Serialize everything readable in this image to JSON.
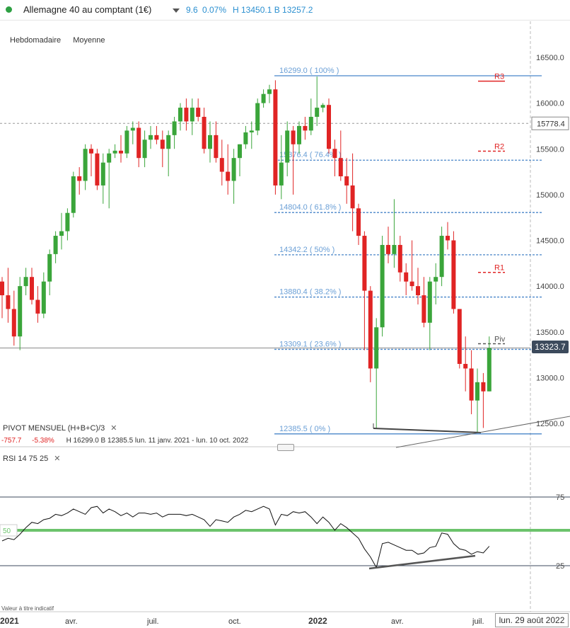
{
  "header": {
    "instrument_name": "Allemagne 40 au comptant (1€)",
    "change_abs": "9.6",
    "change_pct": "0.07%",
    "high_low": "H 13450.1  B 13257.2"
  },
  "toolbar": {
    "period": "Hebdomadaire",
    "average": "Moyenne"
  },
  "price_axis": {
    "ticks": [
      "16500.0",
      "16000.0",
      "15500.0",
      "15000.0",
      "14500.0",
      "14000.0",
      "13500.0",
      "13000.0",
      "12500.0"
    ],
    "highlight_level": "15778.4",
    "current_price": "13323.7"
  },
  "fibonacci": [
    {
      "label": "16299.0 ( 100% )"
    },
    {
      "label": "15376.4 ( 76.4% )"
    },
    {
      "label": "14804.0 ( 61.8% )"
    },
    {
      "label": "14342.2 ( 50% )"
    },
    {
      "label": "13880.4 ( 38.2% )"
    },
    {
      "label": "13309.1 ( 23.6% )"
    },
    {
      "label": "12385.5 ( 0% )"
    }
  ],
  "pivots": {
    "r3": "R3",
    "r2": "R2",
    "r1": "R1",
    "piv": "Piv"
  },
  "pivot_indicator": {
    "title": "PIVOT  MENSUEL  (H+B+C)/3",
    "change": "-757.7",
    "change_pct": "-5.38%",
    "range": "H 16299.0  B 12385.5  lun. 11 janv. 2021 - lun. 10 oct. 2022"
  },
  "rsi_indicator": {
    "title": "RSI  14  75  25",
    "level_75": "75",
    "level_50": "50",
    "level_25": "25"
  },
  "time_axis": {
    "labels": [
      "2021",
      "avr.",
      "juil.",
      "oct.",
      "2022",
      "avr.",
      "juil."
    ],
    "current_date": "lun. 29 août 2022"
  },
  "disclaimer": "Valeur à titre indicatif",
  "colors": {
    "up": "#3aa53a",
    "down": "#e02424",
    "fib": "#2a72c0",
    "rsi_mid": "#6cc36c",
    "pivot": "#e02424"
  },
  "chart_data": {
    "type": "candlestick",
    "title": "Allemagne 40 au comptant (1€)",
    "timeframe": "Hebdomadaire",
    "ylim": [
      12200,
      16800
    ],
    "candles": [
      {
        "o": 14050,
        "h": 14100,
        "l": 13650,
        "c": 13900
      },
      {
        "o": 13900,
        "h": 14200,
        "l": 13600,
        "c": 13750
      },
      {
        "o": 13750,
        "h": 13950,
        "l": 13350,
        "c": 13450
      },
      {
        "o": 13450,
        "h": 14100,
        "l": 13300,
        "c": 14000
      },
      {
        "o": 14000,
        "h": 14200,
        "l": 13900,
        "c": 14100
      },
      {
        "o": 14100,
        "h": 14200,
        "l": 13800,
        "c": 13850
      },
      {
        "o": 13850,
        "h": 14000,
        "l": 13600,
        "c": 13700
      },
      {
        "o": 13700,
        "h": 14150,
        "l": 13650,
        "c": 14050
      },
      {
        "o": 14050,
        "h": 14400,
        "l": 13900,
        "c": 14350
      },
      {
        "o": 14350,
        "h": 14600,
        "l": 14250,
        "c": 14550
      },
      {
        "o": 14550,
        "h": 14800,
        "l": 14400,
        "c": 14600
      },
      {
        "o": 14600,
        "h": 14850,
        "l": 14500,
        "c": 14800
      },
      {
        "o": 14800,
        "h": 15250,
        "l": 14750,
        "c": 15200
      },
      {
        "o": 15200,
        "h": 15300,
        "l": 15000,
        "c": 15150
      },
      {
        "o": 15150,
        "h": 15550,
        "l": 15050,
        "c": 15500
      },
      {
        "o": 15500,
        "h": 15550,
        "l": 15200,
        "c": 15450
      },
      {
        "o": 15450,
        "h": 15500,
        "l": 15050,
        "c": 15100
      },
      {
        "o": 15100,
        "h": 15450,
        "l": 14900,
        "c": 15350
      },
      {
        "o": 15350,
        "h": 15500,
        "l": 14850,
        "c": 15450
      },
      {
        "o": 15450,
        "h": 15550,
        "l": 15400,
        "c": 15480
      },
      {
        "o": 15480,
        "h": 15650,
        "l": 15350,
        "c": 15450
      },
      {
        "o": 15450,
        "h": 15750,
        "l": 15400,
        "c": 15700
      },
      {
        "o": 15700,
        "h": 15800,
        "l": 15550,
        "c": 15730
      },
      {
        "o": 15730,
        "h": 15800,
        "l": 15300,
        "c": 15400
      },
      {
        "o": 15400,
        "h": 15700,
        "l": 15300,
        "c": 15600
      },
      {
        "o": 15600,
        "h": 15750,
        "l": 15500,
        "c": 15650
      },
      {
        "o": 15650,
        "h": 15750,
        "l": 15550,
        "c": 15600
      },
      {
        "o": 15600,
        "h": 15700,
        "l": 15300,
        "c": 15500
      },
      {
        "o": 15500,
        "h": 15700,
        "l": 15200,
        "c": 15650
      },
      {
        "o": 15650,
        "h": 15850,
        "l": 15500,
        "c": 15800
      },
      {
        "o": 15800,
        "h": 16000,
        "l": 15700,
        "c": 15950
      },
      {
        "o": 15950,
        "h": 16050,
        "l": 15700,
        "c": 15800
      },
      {
        "o": 15800,
        "h": 16050,
        "l": 15650,
        "c": 15950
      },
      {
        "o": 15950,
        "h": 16050,
        "l": 15800,
        "c": 15850
      },
      {
        "o": 15850,
        "h": 15950,
        "l": 15450,
        "c": 15500
      },
      {
        "o": 15500,
        "h": 15800,
        "l": 15350,
        "c": 15650
      },
      {
        "o": 15650,
        "h": 15800,
        "l": 15350,
        "c": 15400
      },
      {
        "o": 15400,
        "h": 15600,
        "l": 15100,
        "c": 15250
      },
      {
        "o": 15250,
        "h": 15550,
        "l": 15000,
        "c": 15150
      },
      {
        "o": 15150,
        "h": 15500,
        "l": 14900,
        "c": 15400
      },
      {
        "o": 15400,
        "h": 15550,
        "l": 15200,
        "c": 15550
      },
      {
        "o": 15550,
        "h": 15750,
        "l": 15500,
        "c": 15680
      },
      {
        "o": 15680,
        "h": 15800,
        "l": 15500,
        "c": 15700
      },
      {
        "o": 15700,
        "h": 16050,
        "l": 15650,
        "c": 16000
      },
      {
        "o": 16000,
        "h": 16150,
        "l": 15950,
        "c": 16100
      },
      {
        "o": 16100,
        "h": 16200,
        "l": 16000,
        "c": 16150
      },
      {
        "o": 16150,
        "h": 16250,
        "l": 15000,
        "c": 15100
      },
      {
        "o": 15100,
        "h": 15650,
        "l": 14950,
        "c": 15350
      },
      {
        "o": 15350,
        "h": 15800,
        "l": 15200,
        "c": 15700
      },
      {
        "o": 15700,
        "h": 15750,
        "l": 15000,
        "c": 15550
      },
      {
        "o": 15550,
        "h": 15800,
        "l": 15450,
        "c": 15750
      },
      {
        "o": 15750,
        "h": 15850,
        "l": 15600,
        "c": 15700
      },
      {
        "o": 15700,
        "h": 16050,
        "l": 15650,
        "c": 15850
      },
      {
        "o": 15850,
        "h": 16290,
        "l": 15750,
        "c": 15950
      },
      {
        "o": 15950,
        "h": 16000,
        "l": 15900,
        "c": 15980
      },
      {
        "o": 15980,
        "h": 16050,
        "l": 15450,
        "c": 15500
      },
      {
        "o": 15500,
        "h": 15600,
        "l": 15200,
        "c": 15400
      },
      {
        "o": 15400,
        "h": 15700,
        "l": 15150,
        "c": 15200
      },
      {
        "o": 15200,
        "h": 15400,
        "l": 14900,
        "c": 15100
      },
      {
        "o": 15100,
        "h": 15450,
        "l": 14600,
        "c": 14850
      },
      {
        "o": 14850,
        "h": 14900,
        "l": 14450,
        "c": 14550
      },
      {
        "o": 14550,
        "h": 14600,
        "l": 13300,
        "c": 13950
      },
      {
        "o": 13950,
        "h": 14000,
        "l": 12950,
        "c": 13100
      },
      {
        "o": 13100,
        "h": 13650,
        "l": 12450,
        "c": 13550
      },
      {
        "o": 13550,
        "h": 14550,
        "l": 13450,
        "c": 14450
      },
      {
        "o": 14450,
        "h": 14650,
        "l": 14250,
        "c": 14350
      },
      {
        "o": 14350,
        "h": 14950,
        "l": 14200,
        "c": 14450
      },
      {
        "o": 14450,
        "h": 14550,
        "l": 14050,
        "c": 14150
      },
      {
        "o": 14150,
        "h": 14250,
        "l": 13900,
        "c": 14050
      },
      {
        "o": 14050,
        "h": 14500,
        "l": 13950,
        "c": 14000
      },
      {
        "o": 14000,
        "h": 14200,
        "l": 13800,
        "c": 13900
      },
      {
        "o": 13900,
        "h": 14100,
        "l": 13550,
        "c": 13600
      },
      {
        "o": 13600,
        "h": 14100,
        "l": 13300,
        "c": 14050
      },
      {
        "o": 14050,
        "h": 14250,
        "l": 13800,
        "c": 14100
      },
      {
        "o": 14100,
        "h": 14650,
        "l": 14000,
        "c": 14550
      },
      {
        "o": 14550,
        "h": 14700,
        "l": 14400,
        "c": 14500
      },
      {
        "o": 14500,
        "h": 14600,
        "l": 13700,
        "c": 13750
      },
      {
        "o": 13750,
        "h": 13750,
        "l": 13100,
        "c": 13150
      },
      {
        "o": 13150,
        "h": 13450,
        "l": 12850,
        "c": 13100
      },
      {
        "o": 13100,
        "h": 13300,
        "l": 12600,
        "c": 12750
      },
      {
        "o": 12750,
        "h": 13100,
        "l": 12400,
        "c": 12950
      },
      {
        "o": 12950,
        "h": 13050,
        "l": 12450,
        "c": 12850
      },
      {
        "o": 12850,
        "h": 13450,
        "l": 12850,
        "c": 13323
      }
    ],
    "rsi": [
      42,
      44,
      43,
      47,
      52,
      56,
      55,
      58,
      59,
      62,
      61,
      63,
      66,
      64,
      62,
      67,
      68,
      63,
      66,
      64,
      61,
      63,
      60,
      63,
      63,
      62,
      63,
      60,
      62,
      62,
      62,
      61,
      62,
      60,
      58,
      53,
      58,
      57,
      56,
      60,
      62,
      65,
      64,
      66,
      68,
      66,
      54,
      62,
      61,
      64,
      63,
      64,
      60,
      55,
      60,
      56,
      50,
      55,
      52,
      48,
      44,
      36,
      30,
      22,
      40,
      41,
      39,
      37,
      35,
      35,
      32,
      33,
      37,
      38,
      48,
      47,
      40,
      36,
      35,
      32,
      34,
      33,
      38
    ]
  }
}
